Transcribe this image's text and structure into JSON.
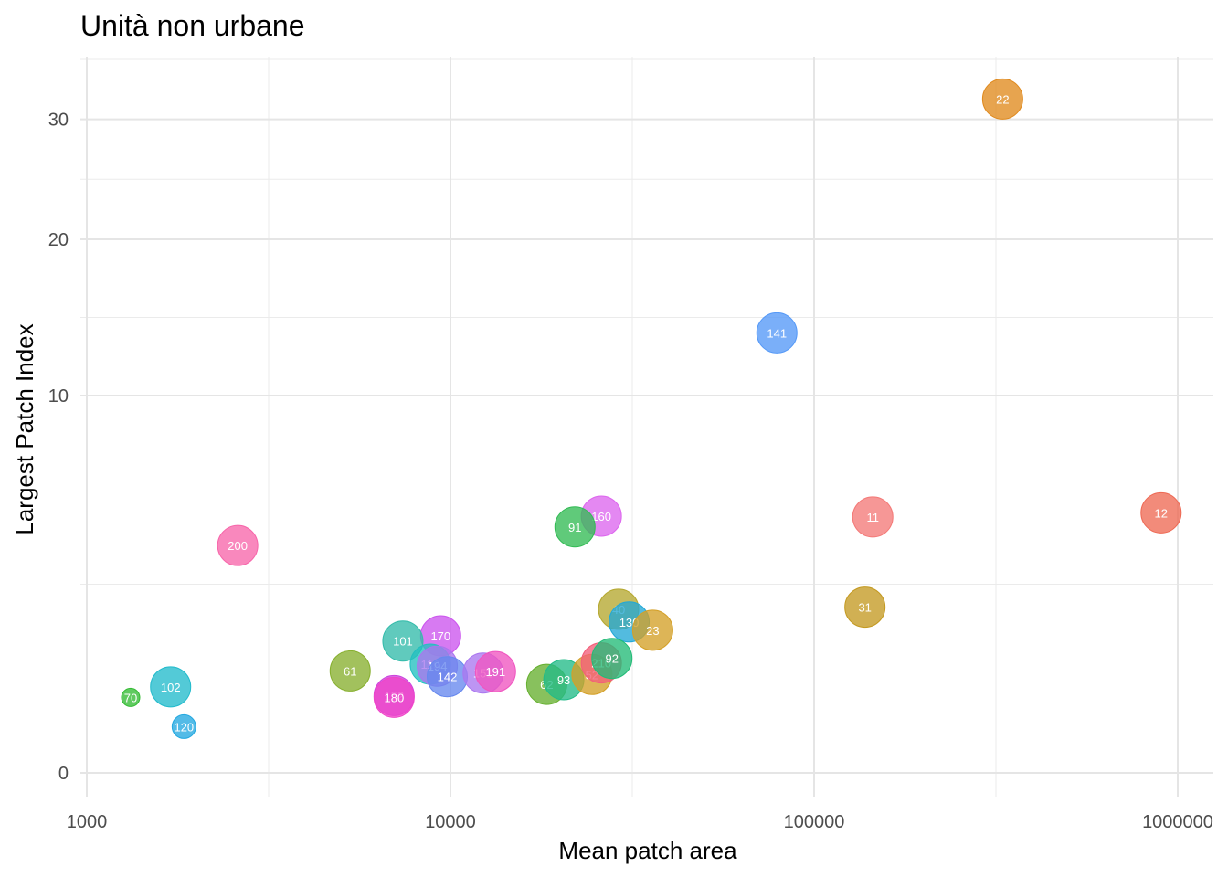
{
  "chart_data": {
    "type": "scatter",
    "title": "Unità non urbane",
    "xlabel": "Mean patch area",
    "ylabel": "Largest Patch Index",
    "x_scale": "log10",
    "y_scale": "sqrt",
    "xlim": [
      1000,
      1000000
    ],
    "ylim": [
      0,
      34
    ],
    "x_ticks": [
      1000,
      10000,
      100000,
      1000000
    ],
    "x_tick_labels": [
      "1000",
      "10000",
      "100000",
      "1000000"
    ],
    "y_ticks": [
      0,
      10,
      20,
      30
    ],
    "y_tick_labels": [
      "0",
      "10",
      "20",
      "30"
    ],
    "grid": true,
    "legend": "none",
    "points": [
      {
        "label": "22",
        "x": 330000,
        "y": 31.9,
        "color": "#E08A1E"
      },
      {
        "label": "141",
        "x": 79000,
        "y": 13.6,
        "color": "#5599F7"
      },
      {
        "label": "12",
        "x": 900000,
        "y": 4.75,
        "color": "#EE6A55"
      },
      {
        "label": "11",
        "x": 145000,
        "y": 4.6,
        "color": "#F47A78"
      },
      {
        "label": "160",
        "x": 26000,
        "y": 4.63,
        "color": "#DD66EE"
      },
      {
        "label": "91",
        "x": 22000,
        "y": 4.25,
        "color": "#33BB55"
      },
      {
        "label": "200",
        "x": 2600,
        "y": 3.63,
        "color": "#F766AA"
      },
      {
        "label": "31",
        "x": 138000,
        "y": 1.93,
        "color": "#C49A22"
      },
      {
        "label": "40",
        "x": 29000,
        "y": 1.88,
        "color": "#B5A830"
      },
      {
        "label": "130",
        "x": 31000,
        "y": 1.6,
        "color": "#22A8D6"
      },
      {
        "label": "23",
        "x": 36000,
        "y": 1.43,
        "color": "#D4A028"
      },
      {
        "label": "170",
        "x": 9400,
        "y": 1.32,
        "color": "#CC55EE"
      },
      {
        "label": "101",
        "x": 7400,
        "y": 1.22,
        "color": "#33BBAA"
      },
      {
        "label": "61",
        "x": 5300,
        "y": 0.73,
        "color": "#88B030"
      },
      {
        "label": "119",
        "x": 8800,
        "y": 0.83,
        "color": "#22C0C0"
      },
      {
        "label": "194",
        "x": 9200,
        "y": 0.8,
        "color": "#AA77EE"
      },
      {
        "label": "142",
        "x": 9800,
        "y": 0.65,
        "color": "#6688EE"
      },
      {
        "label": "151",
        "x": 12300,
        "y": 0.7,
        "color": "#AA77F0"
      },
      {
        "label": "191",
        "x": 13300,
        "y": 0.72,
        "color": "#F055C0"
      },
      {
        "label": "62",
        "x": 18400,
        "y": 0.55,
        "color": "#66B030"
      },
      {
        "label": "93",
        "x": 20500,
        "y": 0.61,
        "color": "#22BB88"
      },
      {
        "label": "52",
        "x": 24500,
        "y": 0.68,
        "color": "#D4A028"
      },
      {
        "label": "210",
        "x": 26000,
        "y": 0.85,
        "color": "#F25F7A"
      },
      {
        "label": "92",
        "x": 27800,
        "y": 0.92,
        "color": "#22BB77"
      },
      {
        "label": "152",
        "x": 7000,
        "y": 0.42,
        "color": "#CC44DD"
      },
      {
        "label": "180",
        "x": 7000,
        "y": 0.4,
        "color": "#F044C8"
      },
      {
        "label": "102",
        "x": 1700,
        "y": 0.52,
        "color": "#22BBCC"
      },
      {
        "label": "120",
        "x": 1850,
        "y": 0.15,
        "color": "#22A8E0"
      },
      {
        "label": "70",
        "x": 1320,
        "y": 0.4,
        "color": "#33BB33"
      }
    ]
  }
}
